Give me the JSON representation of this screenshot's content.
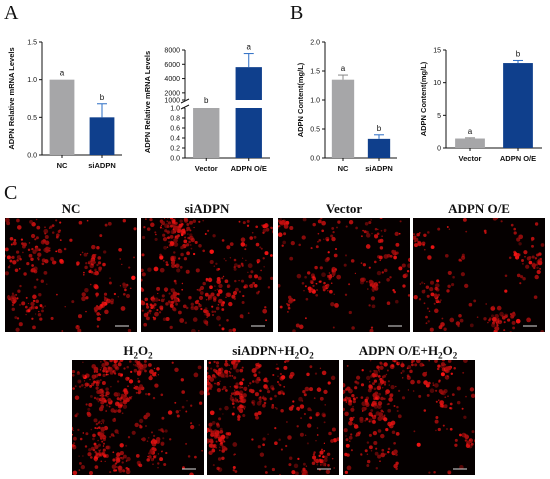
{
  "panels": {
    "A": "A",
    "B": "B",
    "C": "C"
  },
  "colors": {
    "gray": "#a6a6a8",
    "blue": "#0f3f8c",
    "error_gray": "#888888",
    "error_blue": "#2a6cc4",
    "cell_red": "#ff1a1a"
  },
  "chart_data": [
    {
      "type": "bar",
      "ylabel": "ADPN Relative mRNA Levels",
      "categories": [
        "NC",
        "siADPN"
      ],
      "values": [
        1.0,
        0.5
      ],
      "errors": [
        0.0,
        0.18
      ],
      "letters": [
        "a",
        "b"
      ],
      "ylim": [
        0,
        1.5
      ],
      "yticks": [
        "0.0",
        "0.5",
        "1.0",
        "1.5"
      ],
      "colors": [
        "#a6a6a8",
        "#0f3f8c"
      ]
    },
    {
      "type": "bar",
      "ylabel": "ADPN Relative mRNA Levels",
      "axis_break": true,
      "categories": [
        "Vector",
        "ADPN O/E"
      ],
      "values": [
        1.0,
        5600
      ],
      "errors": [
        0.0,
        1900
      ],
      "letters": [
        "b",
        "a"
      ],
      "yticks_lower": [
        "0.0",
        "0.2",
        "0.4",
        "0.6",
        "0.8",
        "1.0"
      ],
      "yticks_upper": [
        "1000",
        "2000",
        "4000",
        "6000",
        "8000"
      ],
      "colors": [
        "#a6a6a8",
        "#0f3f8c"
      ]
    },
    {
      "type": "bar",
      "ylabel": "ADPN Content(mg/L)",
      "categories": [
        "NC",
        "siADPN"
      ],
      "values": [
        1.35,
        0.33
      ],
      "errors": [
        0.08,
        0.07
      ],
      "letters": [
        "a",
        "b"
      ],
      "ylim": [
        0,
        2.0
      ],
      "yticks": [
        "0.0",
        "0.5",
        "1.0",
        "1.5",
        "2.0"
      ],
      "colors": [
        "#a6a6a8",
        "#0f3f8c"
      ]
    },
    {
      "type": "bar",
      "ylabel": "ADPN Content(mg/L)",
      "categories": [
        "Vector",
        "ADPN O/E"
      ],
      "values": [
        1.45,
        13.0
      ],
      "errors": [
        0.1,
        0.4
      ],
      "letters": [
        "a",
        "b"
      ],
      "ylim": [
        0,
        15
      ],
      "yticks": [
        "0",
        "5",
        "10",
        "15"
      ],
      "colors": [
        "#a6a6a8",
        "#0f3f8c"
      ]
    }
  ],
  "images": {
    "row1": [
      {
        "title": "NC",
        "density": 0.55,
        "seed": 11
      },
      {
        "title": "siADPN",
        "density": 0.85,
        "seed": 23
      },
      {
        "title": "Vector",
        "density": 0.45,
        "seed": 37
      },
      {
        "title": "ADPN O/E",
        "density": 0.4,
        "seed": 41
      }
    ],
    "row2": [
      {
        "title_main": "H",
        "title_sub": "2",
        "title_mid": "O",
        "title_sub2": "2",
        "prefix": "",
        "density": 1.0,
        "seed": 53
      },
      {
        "title_main": "H",
        "title_sub": "2",
        "title_mid": "O",
        "title_sub2": "2",
        "prefix": "siADPN+",
        "density": 1.0,
        "seed": 67
      },
      {
        "title_main": "H",
        "title_sub": "2",
        "title_mid": "O",
        "title_sub2": "2",
        "prefix": "ADPN O/E+",
        "density": 0.7,
        "seed": 79
      }
    ]
  }
}
